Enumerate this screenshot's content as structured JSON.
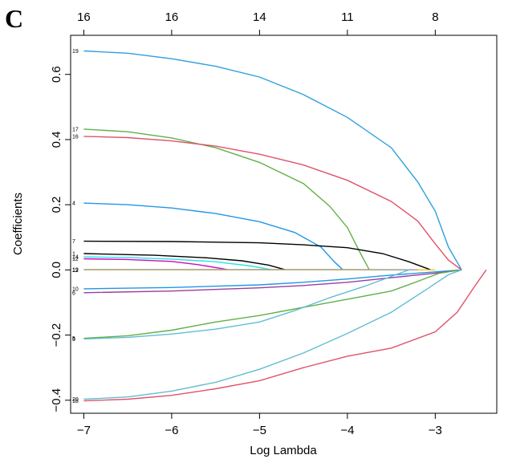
{
  "panel_label": "C",
  "chart_data": {
    "type": "line",
    "title": "",
    "xlabel": "Log Lambda",
    "ylabel": "Coefficients",
    "xlim": [
      -7.15,
      -2.3
    ],
    "ylim": [
      -0.44,
      0.72
    ],
    "x_ticks": [
      -7,
      -6,
      -5,
      -4,
      -3
    ],
    "y_ticks": [
      -0.4,
      -0.2,
      0.0,
      0.2,
      0.4,
      0.6
    ],
    "x_tick_labels": [
      "−7",
      "−6",
      "−5",
      "−4",
      "−3"
    ],
    "y_tick_labels": [
      "−0.4",
      "−0.2",
      "0.0",
      "0.2",
      "0.4",
      "0.6"
    ],
    "top_axis": {
      "x": [
        -7,
        -6,
        -5,
        -4,
        -3
      ],
      "labels": [
        "16",
        "16",
        "14",
        "11",
        "8"
      ]
    },
    "grid": false,
    "legend": "none",
    "series": [
      {
        "label": "19",
        "color": "#2E9FDF",
        "points": [
          [
            -7.0,
            0.672
          ],
          [
            -6.5,
            0.665
          ],
          [
            -6.0,
            0.648
          ],
          [
            -5.5,
            0.625
          ],
          [
            -5.0,
            0.592
          ],
          [
            -4.5,
            0.538
          ],
          [
            -4.0,
            0.468
          ],
          [
            -3.5,
            0.375
          ],
          [
            -3.2,
            0.27
          ],
          [
            -3.0,
            0.18
          ],
          [
            -2.85,
            0.07
          ],
          [
            -2.7,
            0.0
          ]
        ]
      },
      {
        "label": "17",
        "color": "#61B047",
        "points": [
          [
            -7.0,
            0.432
          ],
          [
            -6.5,
            0.424
          ],
          [
            -6.0,
            0.405
          ],
          [
            -5.5,
            0.375
          ],
          [
            -5.0,
            0.33
          ],
          [
            -4.5,
            0.265
          ],
          [
            -4.2,
            0.195
          ],
          [
            -4.0,
            0.13
          ],
          [
            -3.85,
            0.05
          ],
          [
            -3.75,
            0.0
          ]
        ]
      },
      {
        "label": "16",
        "color": "#DF536B",
        "points": [
          [
            -7.0,
            0.41
          ],
          [
            -6.5,
            0.406
          ],
          [
            -6.0,
            0.396
          ],
          [
            -5.5,
            0.38
          ],
          [
            -5.0,
            0.355
          ],
          [
            -4.5,
            0.322
          ],
          [
            -4.0,
            0.275
          ],
          [
            -3.5,
            0.21
          ],
          [
            -3.2,
            0.15
          ],
          [
            -3.0,
            0.08
          ],
          [
            -2.85,
            0.03
          ],
          [
            -2.7,
            0.0
          ]
        ]
      },
      {
        "label": "4",
        "color": "#2297E6",
        "points": [
          [
            -7.0,
            0.205
          ],
          [
            -6.5,
            0.2
          ],
          [
            -6.0,
            0.19
          ],
          [
            -5.5,
            0.173
          ],
          [
            -5.0,
            0.148
          ],
          [
            -4.6,
            0.115
          ],
          [
            -4.3,
            0.07
          ],
          [
            -4.15,
            0.025
          ],
          [
            -4.05,
            0.0
          ]
        ]
      },
      {
        "label": "7",
        "color": "#000000",
        "points": [
          [
            -7.0,
            0.088
          ],
          [
            -6.0,
            0.087
          ],
          [
            -5.0,
            0.083
          ],
          [
            -4.5,
            0.077
          ],
          [
            -4.0,
            0.068
          ],
          [
            -3.6,
            0.05
          ],
          [
            -3.3,
            0.025
          ],
          [
            -3.05,
            0.0
          ]
        ]
      },
      {
        "label": "1",
        "color": "#000000",
        "points": [
          [
            -7.0,
            0.05
          ],
          [
            -6.2,
            0.045
          ],
          [
            -5.6,
            0.037
          ],
          [
            -5.2,
            0.028
          ],
          [
            -4.9,
            0.015
          ],
          [
            -4.7,
            0.0
          ]
        ]
      },
      {
        "label": "14",
        "color": "#28E2E5",
        "points": [
          [
            -7.0,
            0.04
          ],
          [
            -6.5,
            0.038
          ],
          [
            -6.0,
            0.033
          ],
          [
            -5.5,
            0.025
          ],
          [
            -5.1,
            0.012
          ],
          [
            -4.85,
            0.0
          ]
        ]
      },
      {
        "label": "12",
        "color": "#CD0BBC",
        "points": [
          [
            -7.0,
            0.034
          ],
          [
            -6.5,
            0.032
          ],
          [
            -6.0,
            0.026
          ],
          [
            -5.7,
            0.016
          ],
          [
            -5.45,
            0.005
          ],
          [
            -5.35,
            0.0
          ]
        ]
      },
      {
        "label": "12",
        "color": "#F5C710",
        "points": [
          [
            -7.0,
            0.0
          ],
          [
            -5.0,
            0.0
          ],
          [
            -4.0,
            0.0
          ],
          [
            -3.0,
            0.0
          ]
        ]
      },
      {
        "label": "19",
        "color": "#9E9E9E",
        "points": [
          [
            -7.0,
            0.001
          ],
          [
            -5.5,
            0.001
          ],
          [
            -4.0,
            0.001
          ],
          [
            -3.2,
            0.0
          ]
        ]
      },
      {
        "label": "10",
        "color": "#2297E6",
        "points": [
          [
            -7.0,
            -0.058
          ],
          [
            -6.0,
            -0.054
          ],
          [
            -5.0,
            -0.046
          ],
          [
            -4.5,
            -0.038
          ],
          [
            -4.0,
            -0.028
          ],
          [
            -3.5,
            -0.016
          ],
          [
            -3.0,
            -0.006
          ],
          [
            -2.7,
            0.0
          ]
        ]
      },
      {
        "label": "6",
        "color": "#9A3E9E",
        "points": [
          [
            -7.0,
            -0.07
          ],
          [
            -6.0,
            -0.065
          ],
          [
            -5.0,
            -0.055
          ],
          [
            -4.5,
            -0.048
          ],
          [
            -4.0,
            -0.038
          ],
          [
            -3.5,
            -0.024
          ],
          [
            -3.0,
            -0.01
          ],
          [
            -2.7,
            0.0
          ]
        ]
      },
      {
        "label": "5",
        "color": "#61B047",
        "points": [
          [
            -7.0,
            -0.21
          ],
          [
            -6.5,
            -0.202
          ],
          [
            -6.0,
            -0.185
          ],
          [
            -5.5,
            -0.16
          ],
          [
            -5.0,
            -0.14
          ],
          [
            -4.5,
            -0.115
          ],
          [
            -4.0,
            -0.09
          ],
          [
            -3.5,
            -0.065
          ],
          [
            -3.2,
            -0.035
          ],
          [
            -2.95,
            -0.01
          ],
          [
            -2.7,
            0.0
          ]
        ]
      },
      {
        "label": "5",
        "color": "#62BDD2",
        "points": [
          [
            -7.0,
            -0.212
          ],
          [
            -6.5,
            -0.207
          ],
          [
            -6.0,
            -0.197
          ],
          [
            -5.5,
            -0.182
          ],
          [
            -5.0,
            -0.16
          ],
          [
            -4.6,
            -0.125
          ],
          [
            -4.2,
            -0.085
          ],
          [
            -3.8,
            -0.05
          ],
          [
            -3.5,
            -0.02
          ],
          [
            -3.3,
            0.0
          ]
        ]
      },
      {
        "label": "20",
        "color": "#62BDD2",
        "points": [
          [
            -7.0,
            -0.397
          ],
          [
            -6.5,
            -0.39
          ],
          [
            -6.0,
            -0.372
          ],
          [
            -5.5,
            -0.345
          ],
          [
            -5.0,
            -0.305
          ],
          [
            -4.5,
            -0.255
          ],
          [
            -4.0,
            -0.195
          ],
          [
            -3.5,
            -0.13
          ],
          [
            -3.1,
            -0.06
          ],
          [
            -2.85,
            -0.015
          ],
          [
            -2.7,
            0.0
          ]
        ]
      },
      {
        "label": "18",
        "color": "#DF536B",
        "points": [
          [
            -7.0,
            -0.402
          ],
          [
            -6.5,
            -0.397
          ],
          [
            -6.0,
            -0.385
          ],
          [
            -5.5,
            -0.365
          ],
          [
            -5.0,
            -0.34
          ],
          [
            -4.5,
            -0.3
          ],
          [
            -4.0,
            -0.265
          ],
          [
            -3.5,
            -0.24
          ],
          [
            -3.0,
            -0.19
          ],
          [
            -2.75,
            -0.13
          ],
          [
            -2.55,
            -0.05
          ],
          [
            -2.42,
            0.0
          ]
        ]
      }
    ]
  }
}
